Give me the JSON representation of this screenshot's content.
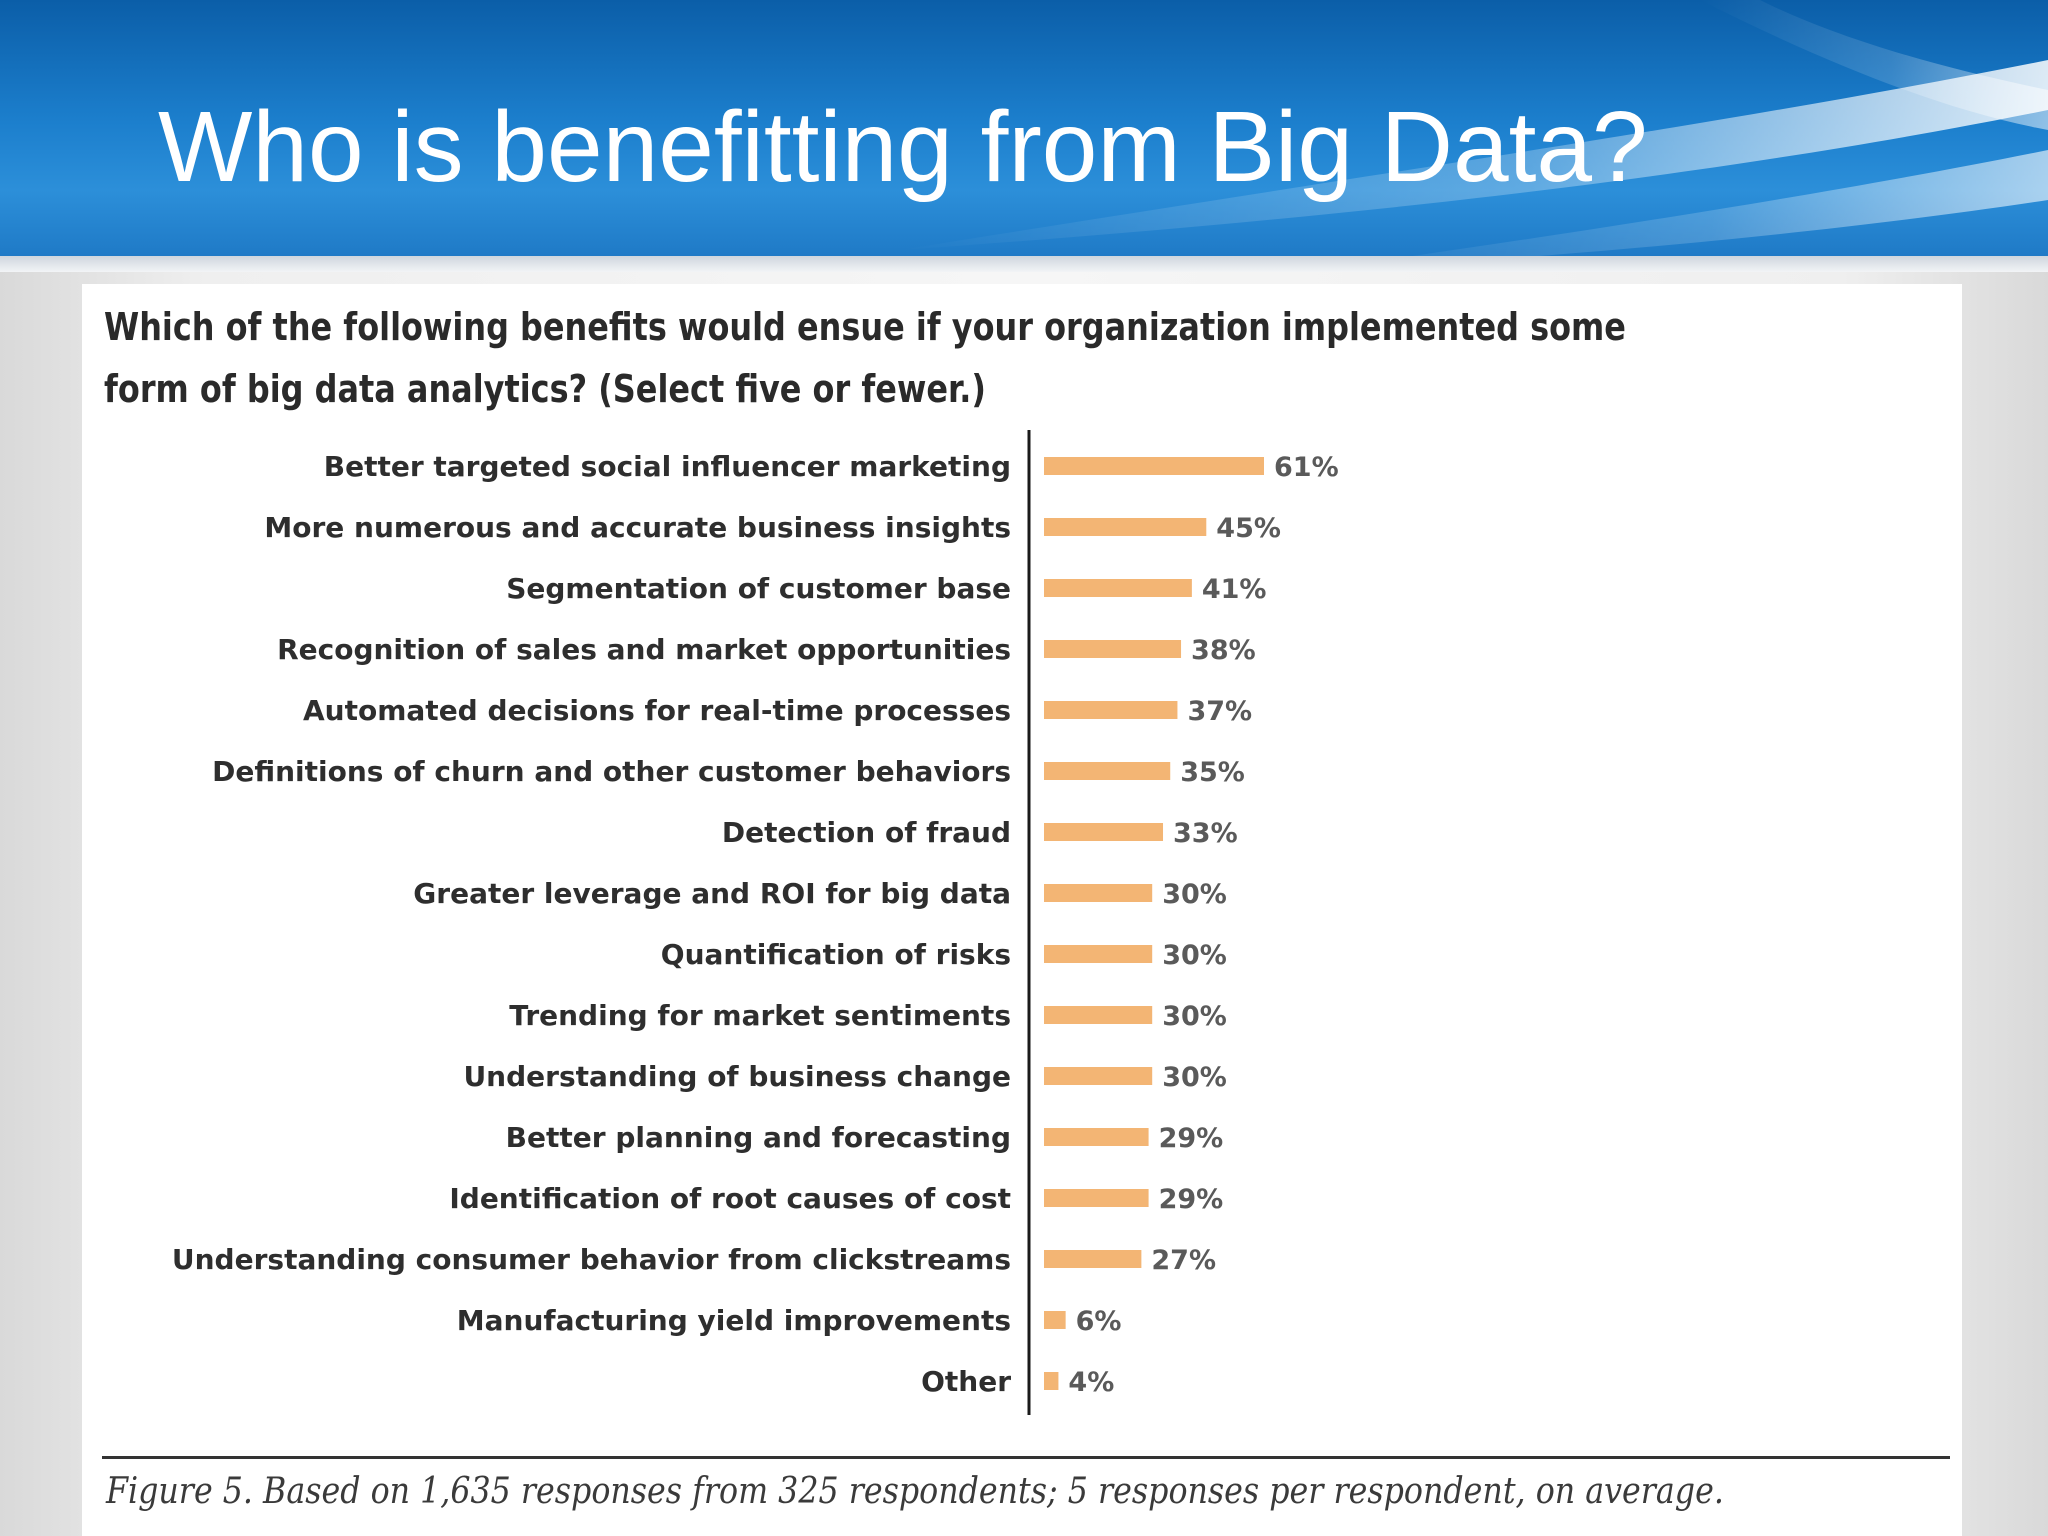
{
  "slide": {
    "title": "Who is benefitting from Big Data?"
  },
  "figure": {
    "caption": "Figure 5. Based on 1,635 responses from 325 respondents; 5 responses per respondent, on average."
  },
  "colors": {
    "bar": "#f3b574",
    "axis": "#1a1a1a"
  },
  "chart_data": {
    "type": "bar",
    "orientation": "horizontal",
    "title": "Which of the following benefits would ensue if your organization implemented some form of big data analytics? (Select five or fewer.)",
    "categories": [
      "Better targeted social influencer marketing",
      "More numerous and accurate business insights",
      "Segmentation of customer base",
      "Recognition of sales and market opportunities",
      "Automated decisions for real-time processes",
      "Definitions of churn and other customer behaviors",
      "Detection of fraud",
      "Greater leverage and ROI for big data",
      "Quantification of risks",
      "Trending for market sentiments",
      "Understanding of business change",
      "Better planning and forecasting",
      "Identification of root causes of cost",
      "Understanding consumer behavior from clickstreams",
      "Manufacturing yield improvements",
      "Other"
    ],
    "values": [
      61,
      45,
      41,
      38,
      37,
      35,
      33,
      30,
      30,
      30,
      30,
      29,
      29,
      27,
      6,
      4
    ],
    "value_labels": [
      "61%",
      "45%",
      "41%",
      "38%",
      "37%",
      "35%",
      "33%",
      "30%",
      "30%",
      "30%",
      "30%",
      "29%",
      "29%",
      "27%",
      "6%",
      "4%"
    ],
    "unit": "%",
    "xlim": [
      0,
      100
    ],
    "grid": false,
    "legend": "none"
  }
}
